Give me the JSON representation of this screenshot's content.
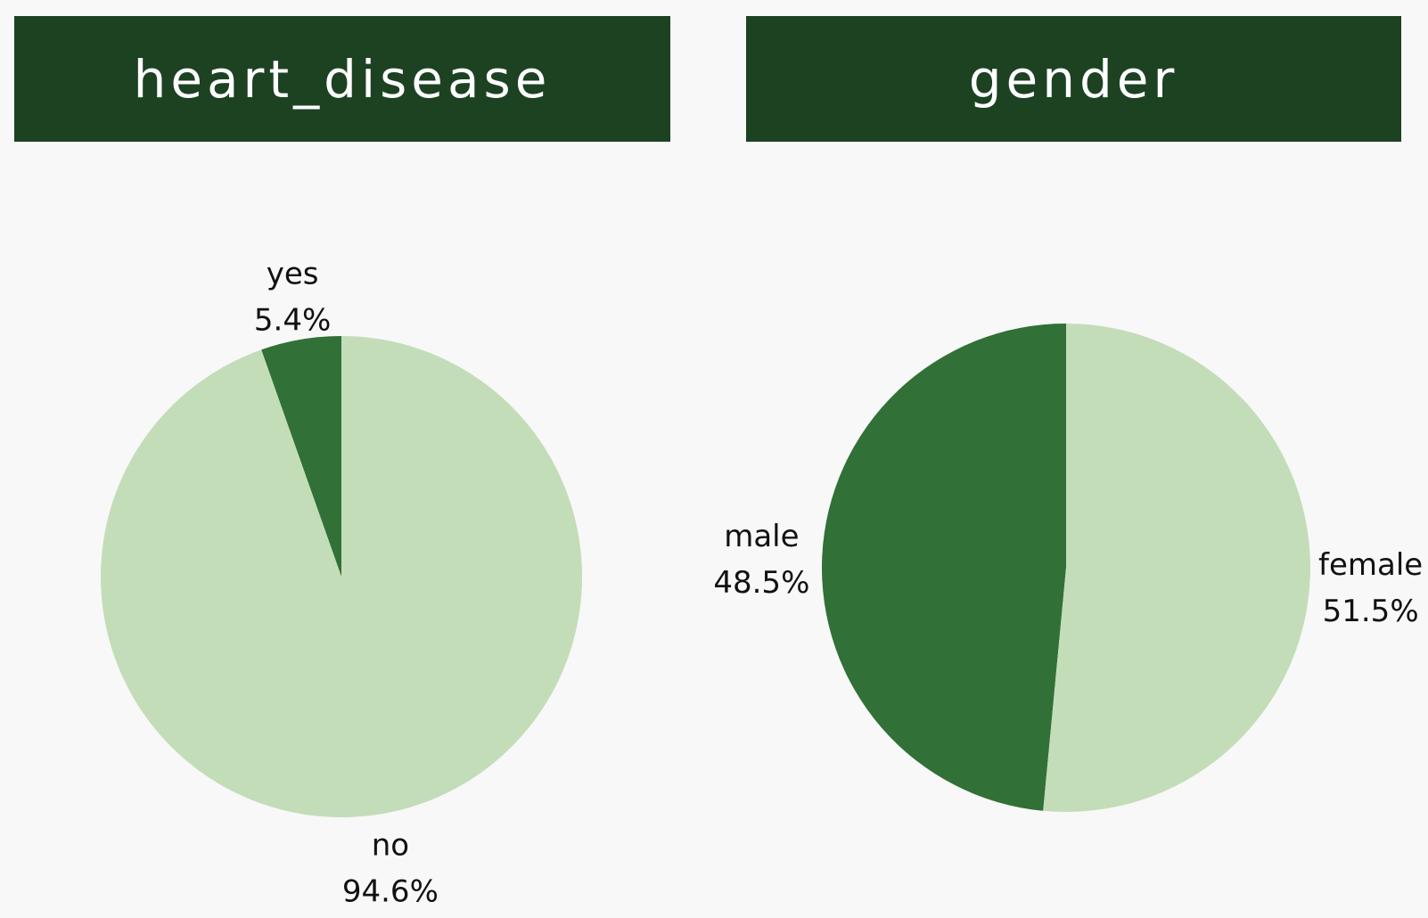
{
  "colors": {
    "header_background": "#1c4222",
    "header_text": "#ffffff",
    "dark_slice": "#317037",
    "light_slice": "#c4ddb9",
    "background": "#f8f8f8"
  },
  "chart_data": [
    {
      "type": "pie",
      "title": "heart_disease",
      "slices": [
        {
          "label": "yes",
          "value": 5.4,
          "percent_label": "5.4%",
          "color": "#317037"
        },
        {
          "label": "no",
          "value": 94.6,
          "percent_label": "94.6%",
          "color": "#c4ddb9"
        }
      ]
    },
    {
      "type": "pie",
      "title": "gender",
      "slices": [
        {
          "label": "male",
          "value": 48.5,
          "percent_label": "48.5%",
          "color": "#317037"
        },
        {
          "label": "female",
          "value": 51.5,
          "percent_label": "51.5%",
          "color": "#c4ddb9"
        }
      ]
    }
  ]
}
